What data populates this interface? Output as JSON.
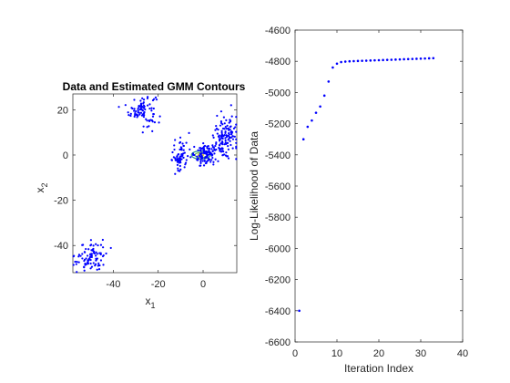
{
  "chart_data": [
    {
      "type": "scatter",
      "title": "Data and Estimated GMM Contours",
      "xlabel": "x",
      "xlabel_sub": "1",
      "ylabel": "x",
      "ylabel_sub": "2",
      "xlim": [
        -58,
        15
      ],
      "ylim": [
        -52,
        27
      ],
      "xticks": [
        -40,
        -20,
        0
      ],
      "yticks": [
        -40,
        -20,
        0,
        20
      ],
      "xtick_labels": [
        "-40",
        "-20",
        "0"
      ],
      "ytick_labels": [
        "-40",
        "-20",
        "0",
        "20"
      ],
      "grid": false,
      "point_color": "#0000ff",
      "clusters": [
        {
          "center": [
            -27,
            20
          ],
          "spread": [
            3.0,
            3.5
          ],
          "count": 90
        },
        {
          "center": [
            -50,
            -45
          ],
          "spread": [
            3.5,
            3.5
          ],
          "count": 90
        },
        {
          "center": [
            -10,
            0
          ],
          "spread": [
            2.0,
            3.8
          ],
          "count": 70
        },
        {
          "center": [
            1,
            0
          ],
          "spread": [
            3.0,
            2.5
          ],
          "count": 110
        },
        {
          "center": [
            10,
            9
          ],
          "spread": [
            2.5,
            5.0
          ],
          "count": 120
        }
      ],
      "contours": [
        {
          "center": [
            -1,
            0
          ],
          "radii": [
            4.2,
            1.8
          ],
          "color": "#2e9a8a"
        },
        {
          "center": [
            -1,
            0
          ],
          "radii": [
            2.6,
            1.1
          ],
          "color": "#70c050"
        },
        {
          "center": [
            -1,
            0
          ],
          "radii": [
            1.2,
            0.5
          ],
          "color": "#e8d020"
        }
      ]
    },
    {
      "type": "scatter",
      "title": "",
      "xlabel": "Iteration Index",
      "ylabel": "Log-Likelihood of Data",
      "xlim": [
        0,
        40
      ],
      "ylim": [
        -6600,
        -4600
      ],
      "xticks": [
        0,
        10,
        20,
        30,
        40
      ],
      "yticks": [
        -6600,
        -6400,
        -6200,
        -6000,
        -5800,
        -5600,
        -5400,
        -5200,
        -5000,
        -4800,
        -4600
      ],
      "xtick_labels": [
        "0",
        "10",
        "20",
        "30",
        "40"
      ],
      "ytick_labels": [
        "-6600",
        "-6400",
        "-6200",
        "-6000",
        "-5800",
        "-5600",
        "-5400",
        "-5200",
        "-5000",
        "-4800",
        "-4600"
      ],
      "grid": false,
      "point_color": "#0000ff",
      "x": [
        1,
        2,
        3,
        4,
        5,
        6,
        7,
        8,
        9,
        10,
        11,
        12,
        13,
        14,
        15,
        16,
        17,
        18,
        19,
        20,
        21,
        22,
        23,
        24,
        25,
        26,
        27,
        28,
        29,
        30,
        31,
        32,
        33
      ],
      "y": [
        -6400,
        -5300,
        -5220,
        -5180,
        -5130,
        -5090,
        -5020,
        -4930,
        -4840,
        -4815,
        -4805,
        -4802,
        -4800,
        -4799,
        -4798,
        -4797,
        -4796,
        -4795,
        -4794,
        -4793,
        -4792,
        -4791,
        -4790,
        -4789,
        -4788,
        -4787,
        -4786,
        -4785,
        -4784,
        -4783,
        -4782,
        -4781,
        -4780
      ]
    }
  ]
}
